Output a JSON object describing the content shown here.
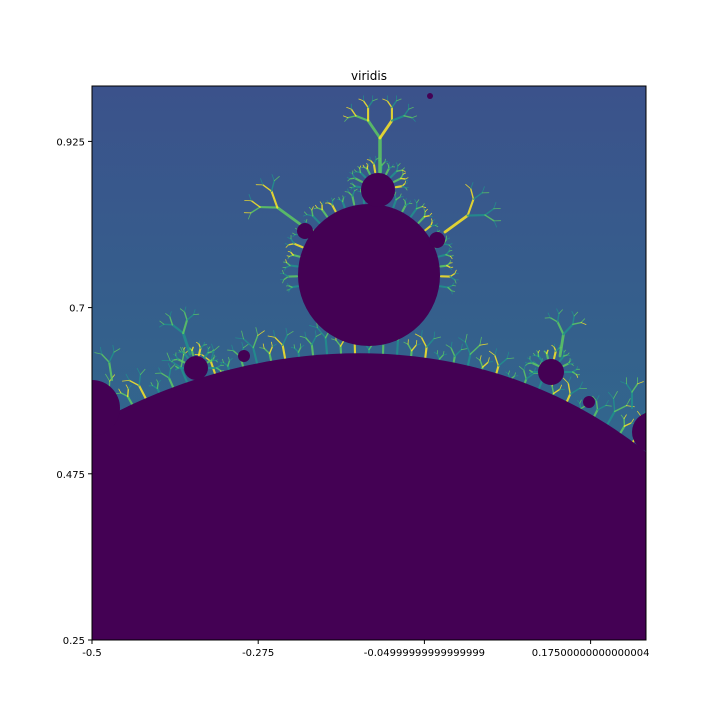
{
  "chart_data": {
    "type": "heatmap",
    "title": "viridis",
    "xlabel": "",
    "ylabel": "",
    "xlim": [
      -0.5,
      0.25
    ],
    "ylim": [
      0.25,
      1.0
    ],
    "x_ticks": [
      {
        "value": -0.5,
        "label": "-0.5"
      },
      {
        "value": -0.275,
        "label": "-0.275"
      },
      {
        "value": -0.05,
        "label": "-0.04999999999999999"
      },
      {
        "value": 0.175,
        "label": "0.17500000000000004"
      }
    ],
    "y_ticks": [
      {
        "value": 0.25,
        "label": "0.25"
      },
      {
        "value": 0.475,
        "label": "0.475"
      },
      {
        "value": 0.7,
        "label": "0.7"
      },
      {
        "value": 0.925,
        "label": "0.925"
      }
    ],
    "colormap": "viridis",
    "colors": {
      "inside": "#440154",
      "background_low": "#3b528b",
      "background_high": "#2c728e",
      "edge_mid": "#21918c",
      "edge_high": "#5ec962",
      "edge_peak": "#fde725"
    },
    "grid": false,
    "legend": "none"
  }
}
